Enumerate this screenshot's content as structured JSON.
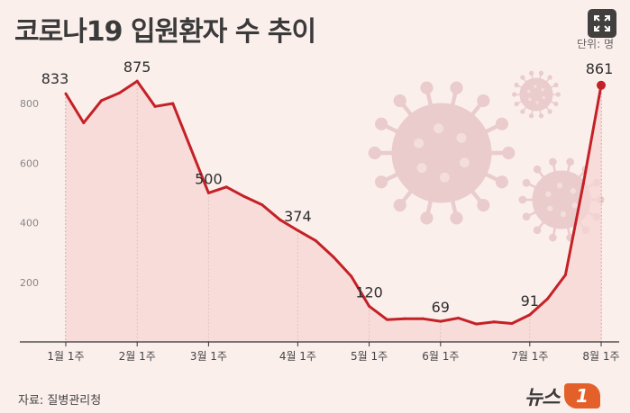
{
  "title": "코로나19 입원환자 수 추이",
  "unit": "단위: 명",
  "source": "자료: 질병관리청",
  "logo": {
    "text": "뉴스",
    "badge": "1"
  },
  "colors": {
    "line": "#c42127",
    "area": "#f6d6d3",
    "background": "#fbefec",
    "virus": "#e9cccb"
  },
  "icons": {
    "expand": "expand-icon",
    "virus": "virus-icon"
  },
  "chart_data": {
    "type": "line",
    "title": "코로나19 입원환자 수 추이",
    "xlabel": "",
    "ylabel": "",
    "ylim": [
      0,
      960
    ],
    "yticks": [
      200,
      400,
      600,
      800
    ],
    "xtick_labels": [
      {
        "label": "1월 1주",
        "index": 0
      },
      {
        "label": "2월 1주",
        "index": 4
      },
      {
        "label": "3월 1주",
        "index": 8
      },
      {
        "label": "4월 1주",
        "index": 13
      },
      {
        "label": "5월 1주",
        "index": 17
      },
      {
        "label": "6월 1주",
        "index": 21
      },
      {
        "label": "7월 1주",
        "index": 26
      },
      {
        "label": "8월 1주",
        "index": 30
      }
    ],
    "series": [
      {
        "values": [
          833,
          735,
          810,
          835,
          875,
          790,
          800,
          650,
          500,
          520,
          488,
          460,
          410,
          374,
          340,
          285,
          220,
          120,
          75,
          78,
          78,
          69,
          80,
          60,
          67,
          62,
          91,
          145,
          225,
          530,
          861
        ],
        "labels": [
          {
            "index": 0,
            "text": "833"
          },
          {
            "index": 4,
            "text": "875"
          },
          {
            "index": 8,
            "text": "500"
          },
          {
            "index": 13,
            "text": "374"
          },
          {
            "index": 17,
            "text": "120"
          },
          {
            "index": 21,
            "text": "69"
          },
          {
            "index": 26,
            "text": "91"
          },
          {
            "index": 30,
            "text": "861"
          }
        ]
      }
    ],
    "grid": false,
    "legend": "none"
  }
}
